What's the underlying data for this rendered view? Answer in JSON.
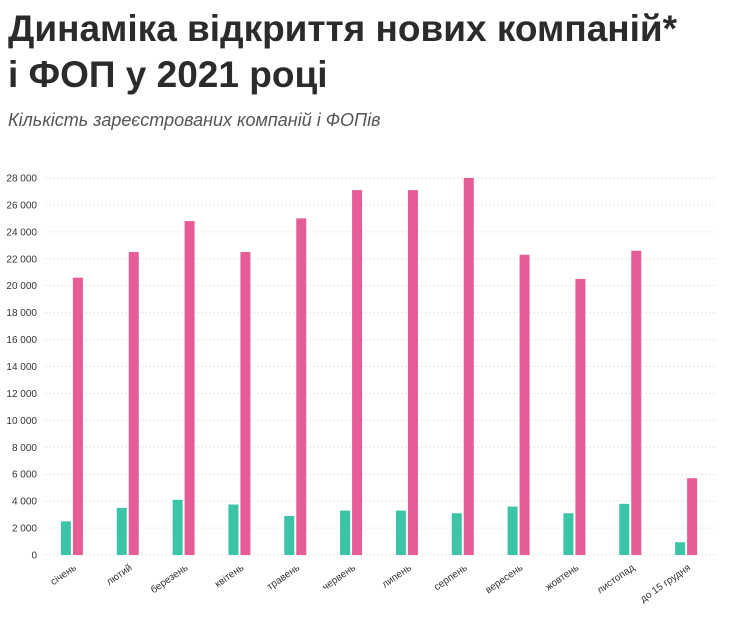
{
  "header": {
    "title_line1": "Динаміка відкриття нових компаній*",
    "title_line2": "і ФОП у 2021 році",
    "subtitle": "Кількість зареєстрованих компаній і ФОПів"
  },
  "colors": {
    "companies": "#3cc4a6",
    "fop": "#e55c97"
  },
  "chart_data": {
    "type": "bar",
    "title": "Динаміка відкриття нових компаній* і ФОП у 2021 році",
    "subtitle": "Кількість зареєстрованих компаній і ФОПів",
    "categories": [
      "січень",
      "лютий",
      "березень",
      "квітень",
      "травень",
      "червень",
      "липень",
      "серпень",
      "вересень",
      "жовтень",
      "листопад",
      "до 15 грудня"
    ],
    "series": [
      {
        "values": [
          2500,
          3500,
          4100,
          3750,
          2900,
          3300,
          3300,
          3100,
          3600,
          3100,
          3800,
          950
        ]
      },
      {
        "values": [
          20600,
          22500,
          24800,
          22500,
          25000,
          27100,
          27100,
          28000,
          22300,
          20500,
          22600,
          5700
        ]
      }
    ],
    "ylim": [
      0,
      28000
    ],
    "yticks": [
      0,
      2000,
      4000,
      6000,
      8000,
      10000,
      12000,
      14000,
      16000,
      18000,
      20000,
      22000,
      24000,
      26000,
      28000
    ],
    "ytick_labels": [
      "0",
      "2 000",
      "4 000",
      "6 000",
      "8 000",
      "10 000",
      "12 000",
      "14 000",
      "16 000",
      "18 000",
      "20 000",
      "22 000",
      "24 000",
      "26 000",
      "28 000"
    ],
    "grid": true,
    "legend": "none"
  }
}
